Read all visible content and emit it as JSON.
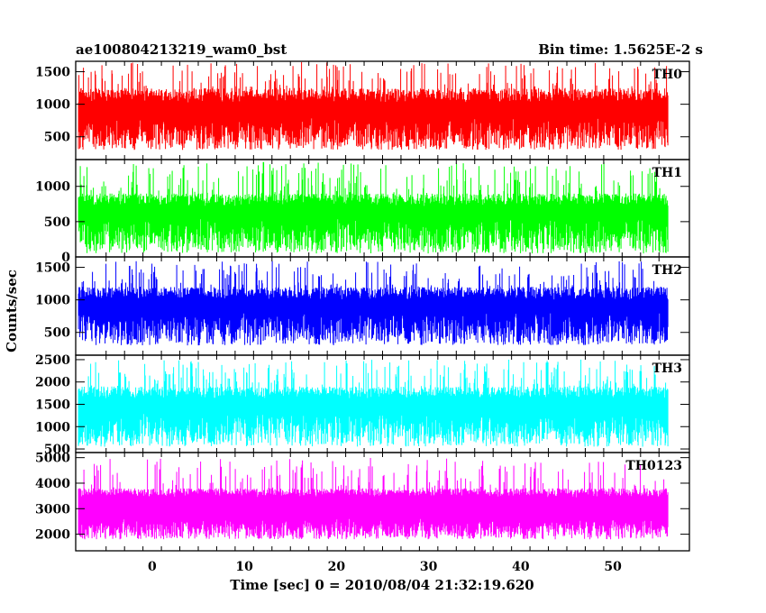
{
  "header": {
    "title": "ae100804213219_wam0_bst",
    "bin_time": "Bin time: 1.5625E-2 s"
  },
  "chart_data": {
    "type": "line",
    "xlabel": "Time [sec] 0 = 2010/08/04 21:32:19.620",
    "ylabel": "Counts/sec",
    "xlim": [
      -8.3,
      58.3
    ],
    "x_ticks": [
      0,
      10,
      20,
      30,
      40,
      50
    ],
    "data_x_range": [
      -8.0,
      56.0
    ],
    "bin_time_s": 0.015625,
    "panels": [
      {
        "name": "TH0",
        "color": "#ff0000",
        "ylim": [
          150,
          1660
        ],
        "yticks": [
          500,
          1000,
          1500
        ],
        "base": [
          300,
          800
        ],
        "peak": [
          1250,
          1650
        ],
        "mean": 750
      },
      {
        "name": "TH1",
        "color": "#00ff00",
        "ylim": [
          0,
          1380
        ],
        "yticks": [
          0,
          500,
          1000
        ],
        "base": [
          50,
          550
        ],
        "peak": [
          900,
          1350
        ],
        "mean": 500
      },
      {
        "name": "TH2",
        "color": "#0000ff",
        "ylim": [
          150,
          1660
        ],
        "yticks": [
          500,
          1000,
          1500
        ],
        "base": [
          300,
          800
        ],
        "peak": [
          1200,
          1600
        ],
        "mean": 750
      },
      {
        "name": "TH3",
        "color": "#00ffff",
        "ylim": [
          420,
          2600
        ],
        "yticks": [
          500,
          1000,
          1500,
          2000,
          2500
        ],
        "base": [
          550,
          1300
        ],
        "peak": [
          1900,
          2500
        ],
        "mean": 1300
      },
      {
        "name": "TH0123",
        "color": "#ff00ff",
        "ylim": [
          1350,
          5200
        ],
        "yticks": [
          2000,
          3000,
          4000,
          5000
        ],
        "base": [
          1800,
          2600
        ],
        "peak": [
          3800,
          5000
        ],
        "mean": 3000
      }
    ]
  }
}
